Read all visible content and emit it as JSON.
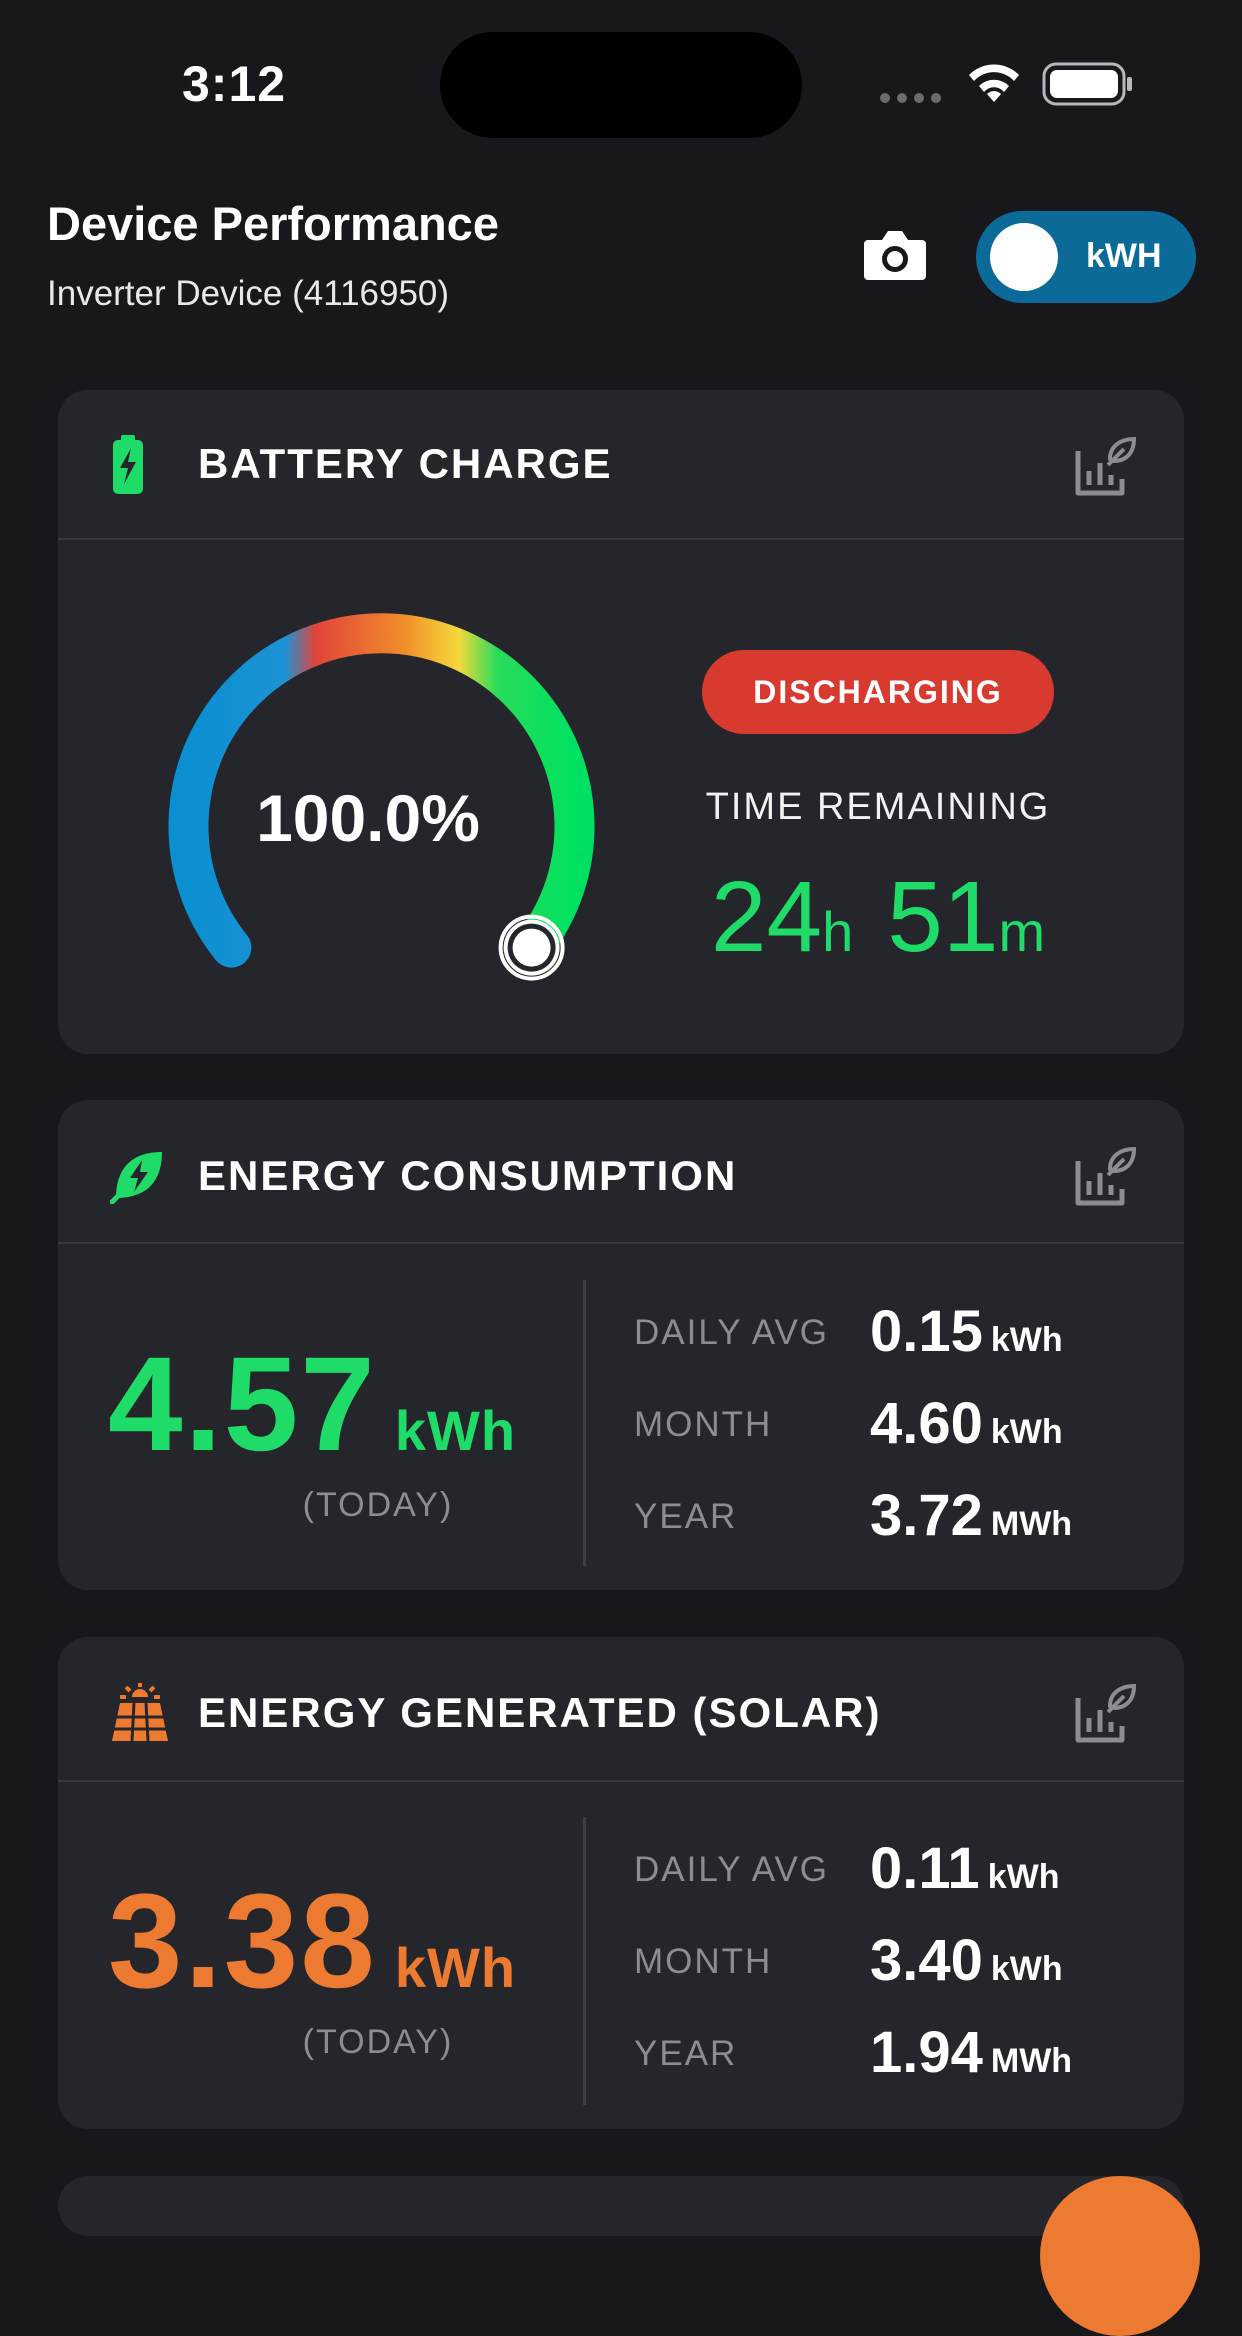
{
  "status_bar": {
    "time": "3:12"
  },
  "header": {
    "title": "Device Performance",
    "subtitle": "Inverter Device (4116950)",
    "unit_toggle_label": "kWH"
  },
  "battery": {
    "title": "BATTERY CHARGE",
    "percent_text": "100.0%",
    "percent_value": 100.0,
    "status": "DISCHARGING",
    "time_label": "TIME REMAINING",
    "hours": "24",
    "hours_unit": "h",
    "minutes": "51",
    "minutes_unit": "m"
  },
  "consumption": {
    "title": "ENERGY CONSUMPTION",
    "today_value": "4.57",
    "today_unit": "kWh",
    "today_label": "(TODAY)",
    "stats": [
      {
        "label": "DAILY AVG",
        "value": "0.15",
        "unit": "kWh"
      },
      {
        "label": "MONTH",
        "value": "4.60",
        "unit": "kWh"
      },
      {
        "label": "YEAR",
        "value": "3.72",
        "unit": "MWh"
      }
    ]
  },
  "solar": {
    "title": "ENERGY GENERATED (SOLAR)",
    "today_value": "3.38",
    "today_unit": "kWh",
    "today_label": "(TODAY)",
    "stats": [
      {
        "label": "DAILY AVG",
        "value": "0.11",
        "unit": "kWh"
      },
      {
        "label": "MONTH",
        "value": "3.40",
        "unit": "kWh"
      },
      {
        "label": "YEAR",
        "value": "1.94",
        "unit": "MWh"
      }
    ]
  },
  "colors": {
    "background": "#18181c",
    "card": "#25262b",
    "accent_green": "#1fdc69",
    "accent_orange": "#ec7a30",
    "toggle_blue": "#0b6a98",
    "discharging_red": "#d93a2f"
  },
  "icons": [
    "wifi-icon",
    "battery-icon",
    "camera-icon",
    "battery-charge-icon",
    "leaf-bolt-icon",
    "solar-panel-icon",
    "chart-leaf-icon"
  ]
}
